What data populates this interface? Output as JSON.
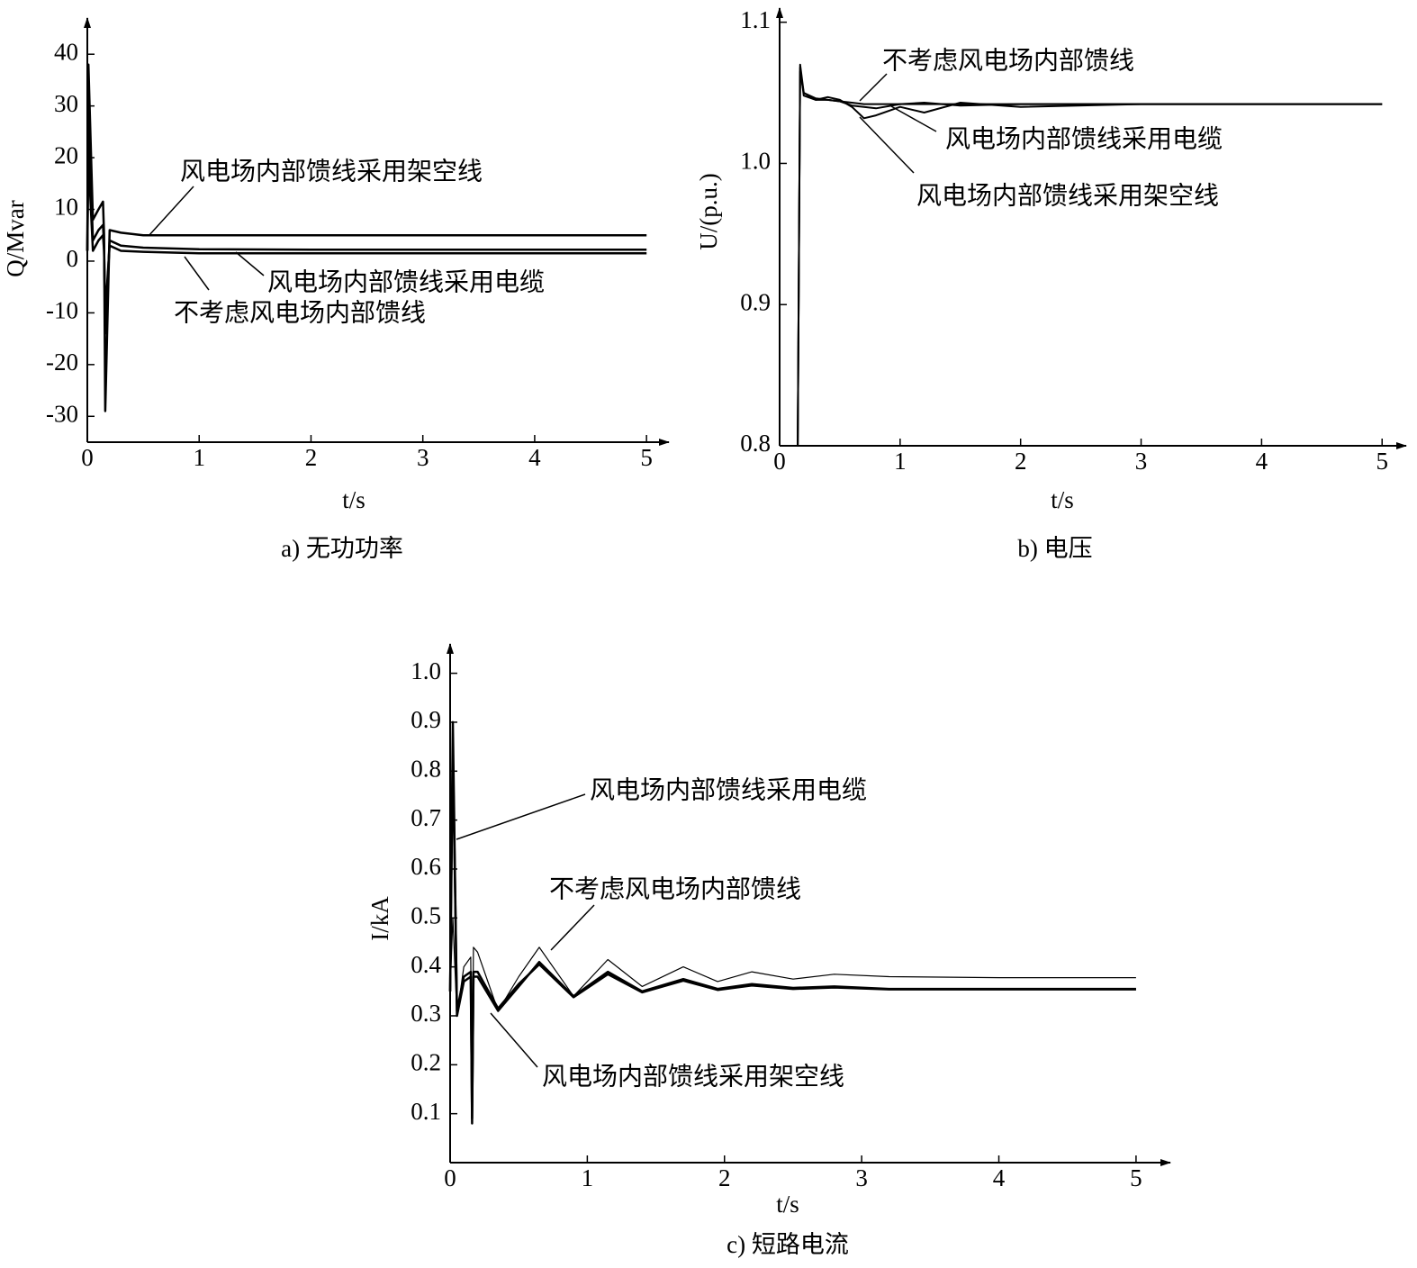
{
  "chart_data": [
    {
      "type": "line",
      "caption": "a) 无功功率",
      "xlabel": "t/s",
      "ylabel": "Q/Mvar",
      "xlim": [
        0,
        5.2
      ],
      "ylim": [
        -35,
        47
      ],
      "xticks": [
        0,
        1,
        2,
        3,
        4,
        5
      ],
      "yticks": [
        -30,
        -20,
        -10,
        0,
        10,
        20,
        30,
        40
      ],
      "x": [
        0,
        0.01,
        0.05,
        0.1,
        0.14,
        0.15,
        0.16,
        0.2,
        0.3,
        0.5,
        1,
        2,
        3,
        4,
        5
      ],
      "series": [
        {
          "name": "风电场内部馈线采用架空线",
          "color": "#000000",
          "line_width": 2.5,
          "values": [
            2,
            38,
            8,
            10,
            11.5,
            5,
            -29,
            6,
            5.5,
            5,
            5,
            5,
            5,
            5,
            5
          ]
        },
        {
          "name": "风电场内部馈线采用电缆",
          "color": "#000000",
          "line_width": 2.5,
          "values": [
            2,
            30,
            4,
            6,
            7,
            3,
            -14,
            4,
            3,
            2.6,
            2.3,
            2.2,
            2.2,
            2.2,
            2.2
          ]
        },
        {
          "name": "不考虑风电场内部馈线",
          "color": "#000000",
          "line_width": 2.5,
          "values": [
            2,
            20,
            2,
            4,
            5,
            2,
            -10,
            3,
            2,
            1.8,
            1.5,
            1.5,
            1.5,
            1.5,
            1.5
          ]
        }
      ]
    },
    {
      "type": "line",
      "caption": "b) 电压",
      "xlabel": "t/s",
      "ylabel": "U/(p.u.)",
      "xlim": [
        0,
        5.2
      ],
      "ylim": [
        0.8,
        1.11
      ],
      "xticks": [
        0,
        1,
        2,
        3,
        4,
        5
      ],
      "yticks": [
        0.8,
        0.9,
        {
          "value": 1,
          "label": "1.0"
        },
        1.1
      ],
      "x": [
        0,
        0.15,
        0.17,
        0.2,
        0.3,
        0.4,
        0.5,
        0.6,
        0.7,
        0.8,
        1.0,
        1.2,
        1.5,
        2,
        3,
        5
      ],
      "series": [
        {
          "name": "不考虑风电场内部馈线",
          "color": "#000000",
          "line_width": 2,
          "values": [
            0.8,
            0.8,
            1.065,
            1.05,
            1.046,
            1.045,
            1.044,
            1.043,
            1.042,
            1.042,
            1.042,
            1.042,
            1.042,
            1.042,
            1.042,
            1.042
          ]
        },
        {
          "name": "风电场内部馈线采用电缆",
          "color": "#000000",
          "line_width": 2,
          "values": [
            0.8,
            0.8,
            1.068,
            1.048,
            1.045,
            1.045,
            1.044,
            1.041,
            1.04,
            1.039,
            1.042,
            1.043,
            1.041,
            1.042,
            1.042,
            1.042
          ]
        },
        {
          "name": "风电场内部馈线采用架空线",
          "color": "#000000",
          "line_width": 2,
          "values": [
            0.8,
            0.8,
            1.07,
            1.05,
            1.045,
            1.047,
            1.045,
            1.04,
            1.032,
            1.034,
            1.04,
            1.036,
            1.043,
            1.04,
            1.042,
            1.042
          ]
        }
      ]
    },
    {
      "type": "line",
      "caption": "c) 短路电流",
      "xlabel": "t/s",
      "ylabel": "I/kA",
      "xlim": [
        0,
        5.25
      ],
      "ylim": [
        0,
        1.06
      ],
      "xticks": [
        0,
        1,
        2,
        3,
        4,
        5
      ],
      "yticks": [
        0.1,
        0.2,
        0.3,
        0.4,
        0.5,
        0.6,
        0.7,
        0.8,
        0.9,
        {
          "value": 1,
          "label": "1.0"
        }
      ],
      "x": [
        0,
        0.02,
        0.05,
        0.1,
        0.15,
        0.16,
        0.17,
        0.2,
        0.35,
        0.5,
        0.65,
        0.9,
        1.15,
        1.4,
        1.7,
        1.95,
        2.2,
        2.5,
        2.8,
        3.2,
        4,
        5
      ],
      "series": [
        {
          "name": "风电场内部馈线采用电缆",
          "color": "#000000",
          "line_width": 2.5,
          "values": [
            0.35,
            0.9,
            0.3,
            0.37,
            0.38,
            0.08,
            0.38,
            0.38,
            0.31,
            0.36,
            0.41,
            0.34,
            0.39,
            0.35,
            0.375,
            0.355,
            0.365,
            0.357,
            0.36,
            0.355,
            0.355,
            0.355
          ]
        },
        {
          "name": "不考虑风电场内部馈线",
          "color": "#000000",
          "line_width": 1.2,
          "values": [
            0.35,
            0.5,
            0.3,
            0.4,
            0.42,
            0.1,
            0.44,
            0.43,
            0.31,
            0.38,
            0.44,
            0.34,
            0.415,
            0.36,
            0.4,
            0.37,
            0.39,
            0.375,
            0.385,
            0.38,
            0.378,
            0.378
          ]
        },
        {
          "name": "风电场内部馈线采用架空线",
          "color": "#000000",
          "line_width": 2.5,
          "values": [
            0.35,
            0.85,
            0.31,
            0.38,
            0.39,
            0.09,
            0.39,
            0.39,
            0.315,
            0.365,
            0.405,
            0.338,
            0.385,
            0.348,
            0.372,
            0.353,
            0.362,
            0.355,
            0.358,
            0.354,
            0.354,
            0.354
          ]
        }
      ]
    }
  ]
}
